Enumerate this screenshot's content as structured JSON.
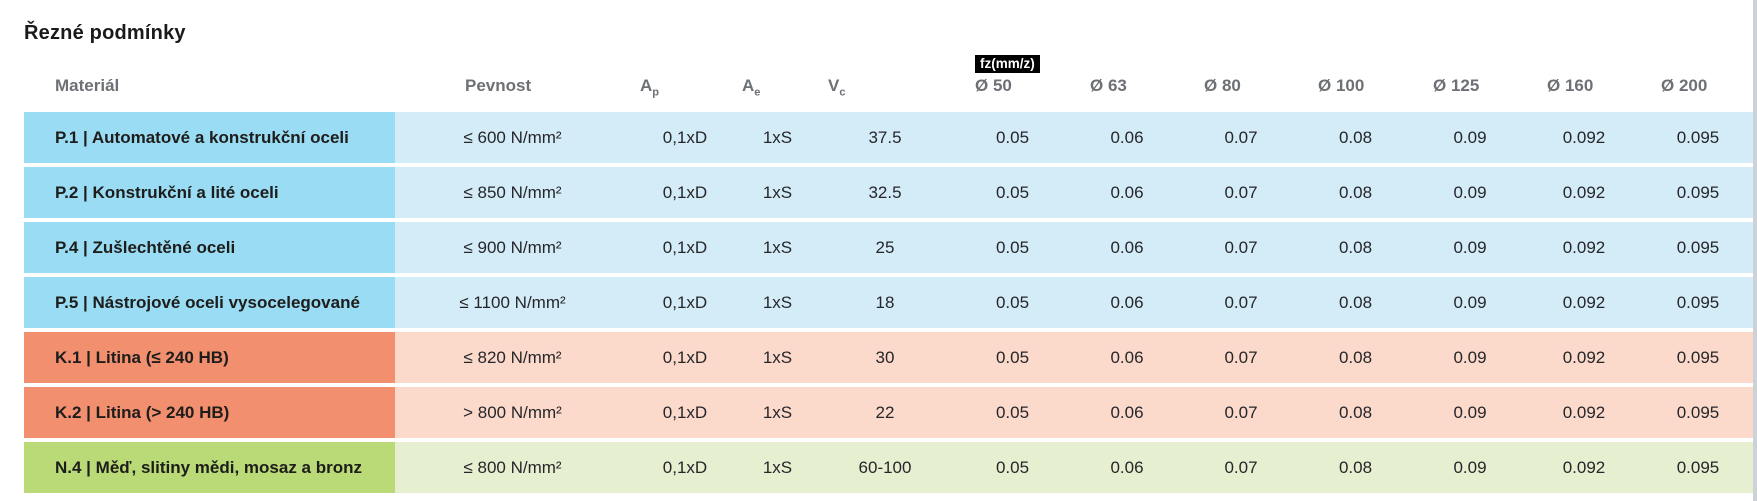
{
  "page": {
    "title": "Řezné podmínky"
  },
  "table": {
    "headers": {
      "material": "Materiál",
      "pevnost": "Pevnost",
      "ap": {
        "base": "A",
        "sub": "p"
      },
      "ae": {
        "base": "A",
        "sub": "e"
      },
      "vc": {
        "base": "V",
        "sub": "c"
      },
      "fz_badge": "fz(mm/z)",
      "diameters": [
        "Ø 50",
        "Ø 63",
        "Ø 80",
        "Ø 100",
        "Ø 125",
        "Ø 160",
        "Ø 200"
      ]
    },
    "rows": [
      {
        "group": "P",
        "material": "P.1 | Automatové a konstrukční oceli",
        "pevnost": "≤ 600 N/mm²",
        "ap": "0,1xD",
        "ae": "1xS",
        "vc": "37.5",
        "fz": [
          "0.05",
          "0.06",
          "0.07",
          "0.08",
          "0.09",
          "0.092",
          "0.095"
        ]
      },
      {
        "group": "P",
        "material": "P.2 | Konstrukční a lité oceli",
        "pevnost": "≤ 850 N/mm²",
        "ap": "0,1xD",
        "ae": "1xS",
        "vc": "32.5",
        "fz": [
          "0.05",
          "0.06",
          "0.07",
          "0.08",
          "0.09",
          "0.092",
          "0.095"
        ]
      },
      {
        "group": "P",
        "material": "P.4 | Zušlechtěné oceli",
        "pevnost": "≤ 900 N/mm²",
        "ap": "0,1xD",
        "ae": "1xS",
        "vc": "25",
        "fz": [
          "0.05",
          "0.06",
          "0.07",
          "0.08",
          "0.09",
          "0.092",
          "0.095"
        ]
      },
      {
        "group": "P",
        "material": "P.5 | Nástrojové oceli vysocelegované",
        "pevnost": "≤ 1100 N/mm²",
        "ap": "0,1xD",
        "ae": "1xS",
        "vc": "18",
        "fz": [
          "0.05",
          "0.06",
          "0.07",
          "0.08",
          "0.09",
          "0.092",
          "0.095"
        ]
      },
      {
        "group": "K",
        "material": "K.1 | Litina (≤ 240 HB)",
        "pevnost": "≤ 820 N/mm²",
        "ap": "0,1xD",
        "ae": "1xS",
        "vc": "30",
        "fz": [
          "0.05",
          "0.06",
          "0.07",
          "0.08",
          "0.09",
          "0.092",
          "0.095"
        ]
      },
      {
        "group": "K",
        "material": "K.2 | Litina (> 240 HB)",
        "pevnost": "> 800 N/mm²",
        "ap": "0,1xD",
        "ae": "1xS",
        "vc": "22",
        "fz": [
          "0.05",
          "0.06",
          "0.07",
          "0.08",
          "0.09",
          "0.092",
          "0.095"
        ]
      },
      {
        "group": "N",
        "material": "N.4 | Měď, slitiny mědi, mosaz a bronz",
        "pevnost": "≤ 800 N/mm²",
        "ap": "0,1xD",
        "ae": "1xS",
        "vc": "60-100",
        "fz": [
          "0.05",
          "0.06",
          "0.07",
          "0.08",
          "0.09",
          "0.092",
          "0.095"
        ]
      }
    ],
    "colors": {
      "p_label": "#9adcf3",
      "p_data": "#d3ecf8",
      "k_label": "#f28f6f",
      "k_data": "#fbd9cb",
      "n_label": "#b9da76",
      "n_data": "#e6efd0",
      "badge_bg": "#000000",
      "badge_fg": "#ffffff",
      "header_text": "#6d7175"
    }
  }
}
